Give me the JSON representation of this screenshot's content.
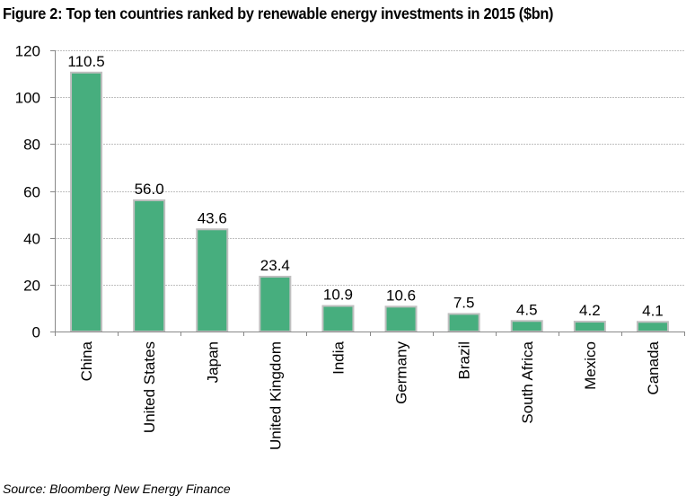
{
  "title": "Figure 2: Top ten countries ranked by renewable energy investments in 2015 ($bn)",
  "source": "Source: Bloomberg New Energy Finance",
  "colors": {
    "bar_fill": "#47AE7E",
    "bar_border": "#BFBFBF",
    "gridline": "#BFBFBF",
    "axis": "#888888"
  },
  "chart_data": {
    "type": "bar",
    "title": "Figure 2: Top ten countries ranked by renewable energy investments in 2015 ($bn)",
    "xlabel": "",
    "ylabel": "",
    "categories": [
      "China",
      "United States",
      "Japan",
      "United Kingdom",
      "India",
      "Germany",
      "Brazil",
      "South Africa",
      "Mexico",
      "Canada"
    ],
    "values": [
      110.5,
      56.0,
      43.6,
      23.4,
      10.9,
      10.6,
      7.5,
      4.5,
      4.2,
      4.1
    ],
    "value_labels": [
      "110.5",
      "56.0",
      "43.6",
      "23.4",
      "10.9",
      "10.6",
      "7.5",
      "4.5",
      "4.2",
      "4.1"
    ],
    "ylim": [
      0,
      120
    ],
    "yticks": [
      0,
      20,
      40,
      60,
      80,
      100,
      120
    ],
    "ytick_labels": [
      "0",
      "20",
      "40",
      "60",
      "80",
      "100",
      "120"
    ],
    "grid": true,
    "legend": "none",
    "source": "Source: Bloomberg New Energy Finance"
  }
}
